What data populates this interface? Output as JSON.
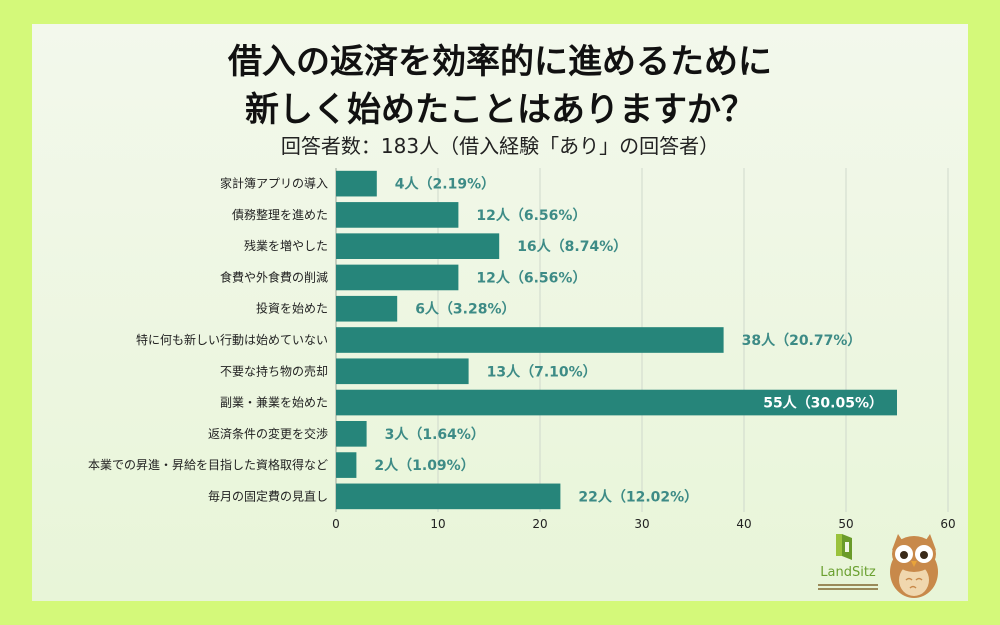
{
  "chart_data": {
    "type": "bar",
    "orientation": "horizontal",
    "title_line1": "借入の返済を効率的に進めるために",
    "title_line2": "新しく始めたことはありますか？",
    "subtitle": "回答者数：183人（借入経験「あり」の回答者）",
    "categories": [
      "家計簿アプリの導入",
      "債務整理を進めた",
      "残業を増やした",
      "食費や外食費の削減",
      "投資を始めた",
      "特に何も新しい行動は始めていない",
      "不要な持ち物の売却",
      "副業・兼業を始めた",
      "返済条件の変更を交渉",
      "本業での昇進・昇給を目指した資格取得など",
      "毎月の固定費の見直し"
    ],
    "values": [
      4,
      12,
      16,
      12,
      6,
      38,
      13,
      55,
      3,
      2,
      22
    ],
    "data_labels": [
      "4人（2.19%）",
      "12人（6.56%）",
      "16人（8.74%）",
      "12人（6.56%）",
      "6人（3.28%）",
      "38人（20.77%）",
      "13人（7.10%）",
      "55人（30.05%）",
      "3人（1.64%）",
      "2人（1.09%）",
      "22人（12.02%）"
    ],
    "xlim": [
      0,
      60
    ],
    "xticks": [
      0,
      10,
      20,
      30,
      40,
      50,
      60
    ],
    "grid": true,
    "colors": {
      "bar": "#26857a",
      "label": "#3d8b86",
      "inner_label": "#ffffff",
      "grid": "#cfd8cc",
      "text": "#222222"
    }
  },
  "brand": {
    "name": "LandSitz"
  }
}
